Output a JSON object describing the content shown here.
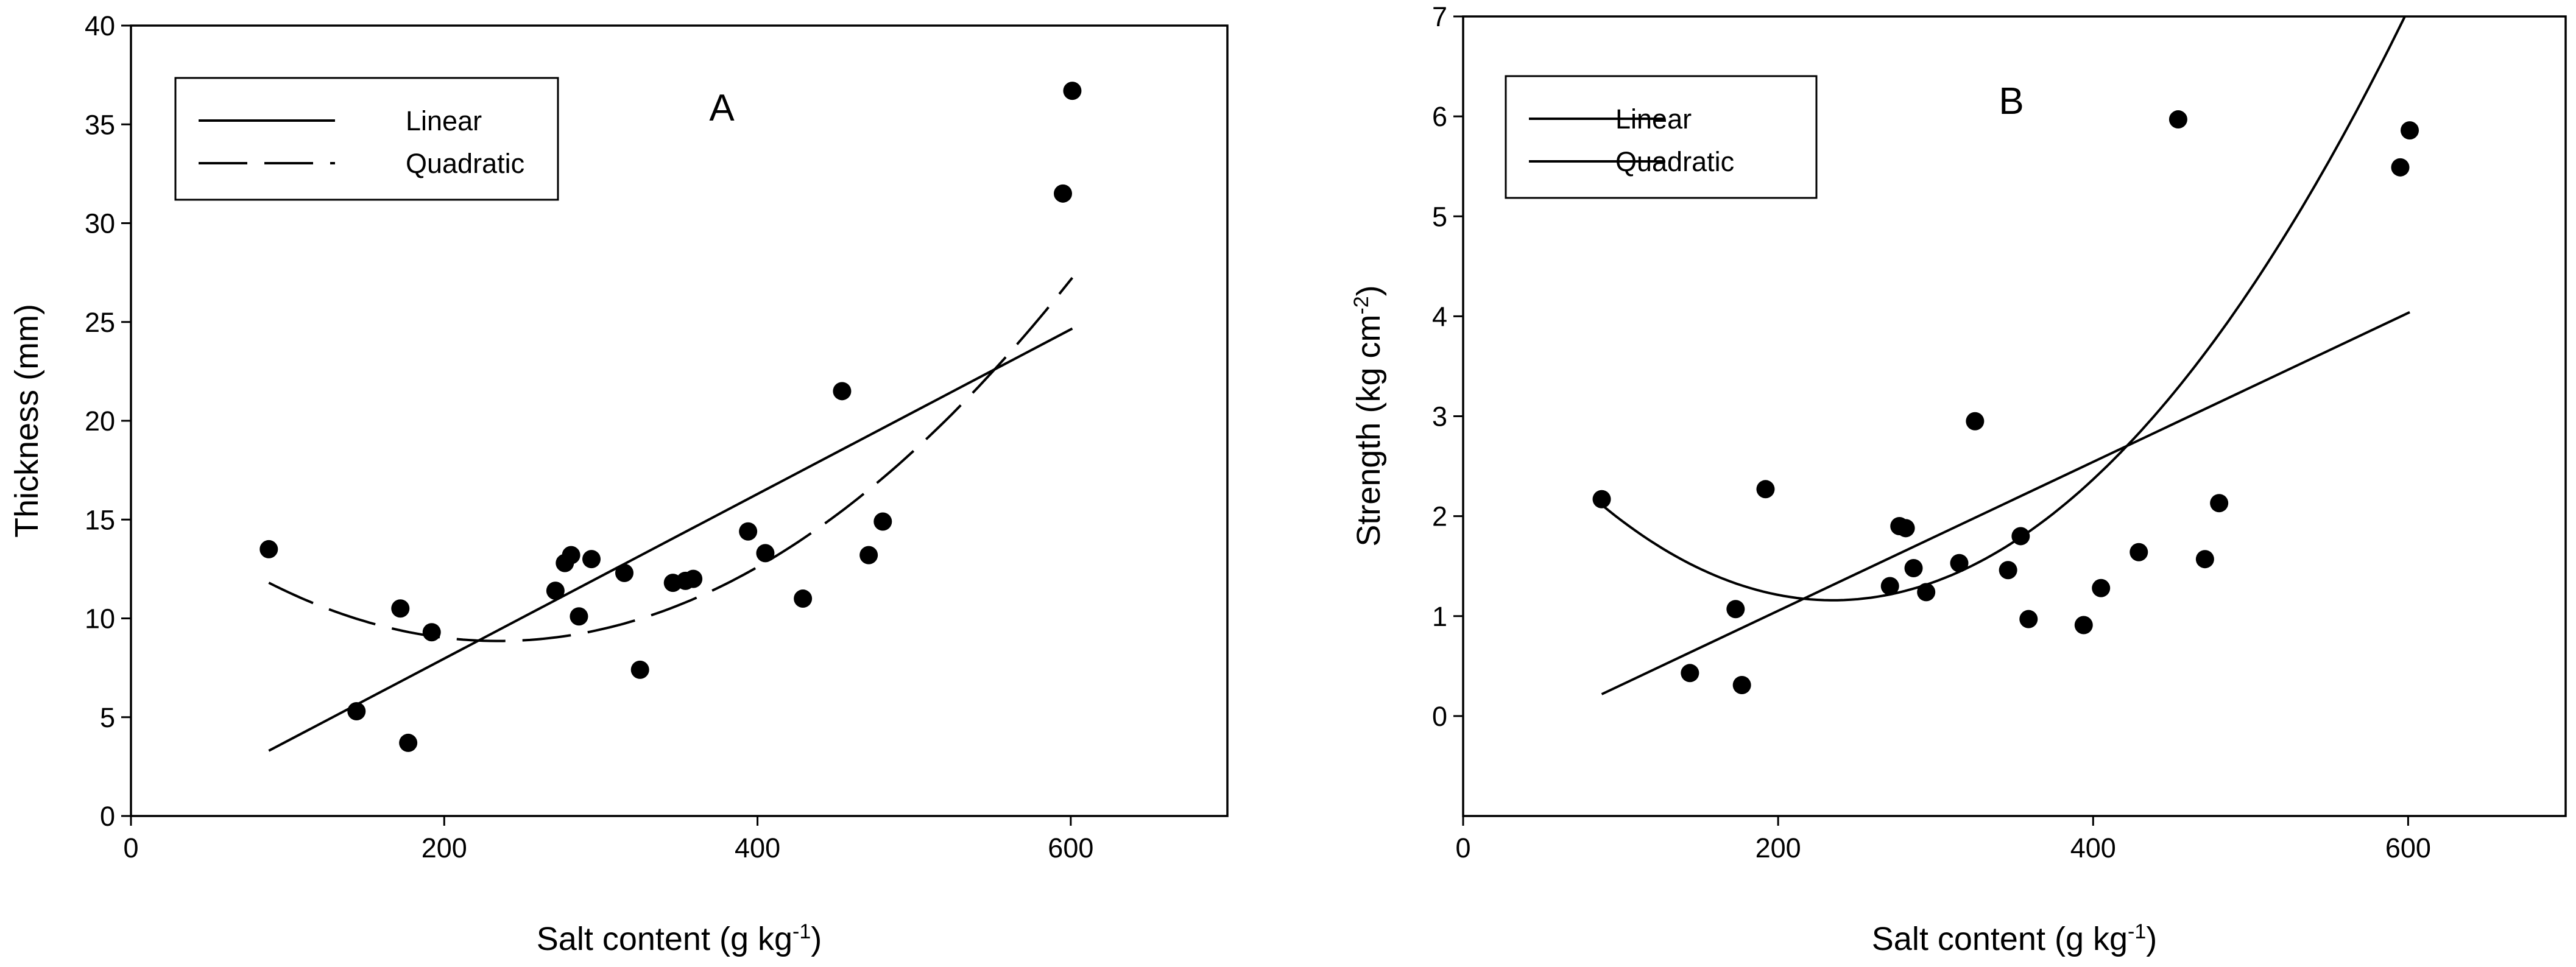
{
  "chart_data": [
    {
      "type": "scatter",
      "panel_label": "A",
      "xlabel": "Salt content (g kg",
      "xlabel_sup": "-1",
      "xlabel_end": ")",
      "ylabel": "Thickness (mm)",
      "xlim": [
        0,
        700
      ],
      "ylim": [
        0,
        40
      ],
      "xticks": [
        0,
        200,
        400,
        600
      ],
      "yticks": [
        0,
        5,
        10,
        15,
        20,
        25,
        30,
        35,
        40
      ],
      "legend_position": "top-left",
      "legend": [
        {
          "label": "Linear",
          "style": "solid"
        },
        {
          "label": "Quadratic",
          "style": "dashed"
        }
      ],
      "fits": {
        "linear": {
          "x_range": [
            88,
            601
          ],
          "coef": [
            -0.365,
            0.04165
          ]
        },
        "quadratic": {
          "x_range": [
            88,
            601
          ],
          "coef": [
            16.4,
            -0.0643,
            0.000137
          ]
        }
      },
      "points": [
        {
          "x": 88,
          "y": 13.5
        },
        {
          "x": 144,
          "y": 5.3
        },
        {
          "x": 172,
          "y": 10.5
        },
        {
          "x": 177,
          "y": 3.7
        },
        {
          "x": 192,
          "y": 9.3
        },
        {
          "x": 271,
          "y": 11.4
        },
        {
          "x": 277,
          "y": 12.8
        },
        {
          "x": 281,
          "y": 13.2
        },
        {
          "x": 286,
          "y": 10.1
        },
        {
          "x": 294,
          "y": 13.0
        },
        {
          "x": 315,
          "y": 12.3
        },
        {
          "x": 325,
          "y": 7.4
        },
        {
          "x": 346,
          "y": 11.8
        },
        {
          "x": 354,
          "y": 11.9
        },
        {
          "x": 359,
          "y": 12.0
        },
        {
          "x": 394,
          "y": 14.4
        },
        {
          "x": 405,
          "y": 13.3
        },
        {
          "x": 429,
          "y": 11.0
        },
        {
          "x": 454,
          "y": 21.5
        },
        {
          "x": 471,
          "y": 13.2
        },
        {
          "x": 480,
          "y": 14.9
        },
        {
          "x": 595,
          "y": 31.5
        },
        {
          "x": 601,
          "y": 36.7
        }
      ]
    },
    {
      "type": "scatter",
      "panel_label": "B",
      "xlabel": "Salt content (g kg",
      "xlabel_sup": "-1",
      "xlabel_end": ")",
      "ylabel": "Strength (kg cm",
      "ylabel_sup": "-2",
      "ylabel_end": ")",
      "xlim": [
        0,
        700
      ],
      "ylim": [
        -1,
        7
      ],
      "xticks": [
        0,
        200,
        400,
        600
      ],
      "yticks": [
        0,
        1,
        2,
        3,
        4,
        5,
        6,
        7
      ],
      "legend_position": "top-left",
      "legend": [
        {
          "label": "Linear",
          "style": "solid"
        },
        {
          "label": "Quadratic",
          "style": "solid"
        }
      ],
      "fits": {
        "linear": {
          "x_range": [
            88,
            601
          ],
          "coef": [
            -0.437,
            0.00745
          ]
        },
        "quadratic": {
          "x_range": [
            88,
            601
          ],
          "coef": [
            3.6,
            -0.0208,
            4.43e-05
          ]
        }
      },
      "points": [
        {
          "x": 88,
          "y": 2.17
        },
        {
          "x": 144,
          "y": 0.43
        },
        {
          "x": 173,
          "y": 1.07
        },
        {
          "x": 177,
          "y": 0.31
        },
        {
          "x": 192,
          "y": 2.27
        },
        {
          "x": 271,
          "y": 1.3
        },
        {
          "x": 277,
          "y": 1.9
        },
        {
          "x": 281,
          "y": 1.88
        },
        {
          "x": 286,
          "y": 1.48
        },
        {
          "x": 294,
          "y": 1.24
        },
        {
          "x": 315,
          "y": 1.53
        },
        {
          "x": 325,
          "y": 2.95
        },
        {
          "x": 346,
          "y": 1.46
        },
        {
          "x": 354,
          "y": 1.8
        },
        {
          "x": 359,
          "y": 0.97
        },
        {
          "x": 394,
          "y": 0.91
        },
        {
          "x": 405,
          "y": 1.28
        },
        {
          "x": 429,
          "y": 1.64
        },
        {
          "x": 454,
          "y": 5.97
        },
        {
          "x": 471,
          "y": 1.57
        },
        {
          "x": 480,
          "y": 2.13
        },
        {
          "x": 595,
          "y": 5.49
        },
        {
          "x": 601,
          "y": 5.86
        }
      ]
    }
  ]
}
